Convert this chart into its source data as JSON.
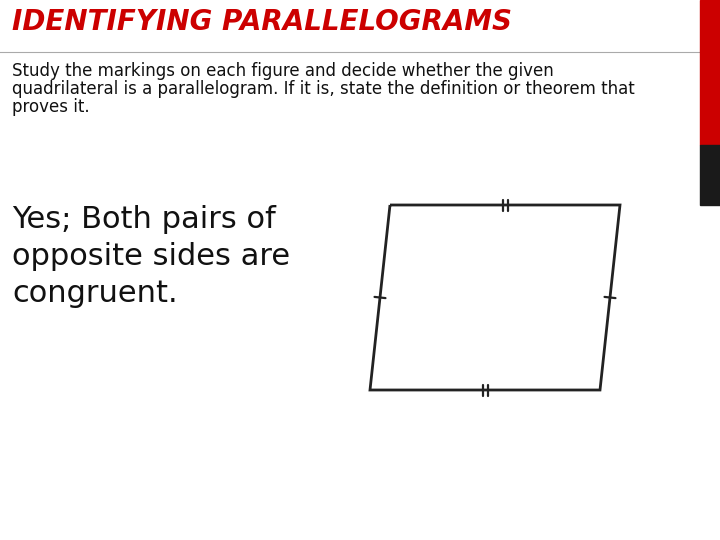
{
  "title": "IDENTIFYING PARALLELOGRAMS",
  "title_color": "#cc0000",
  "body_bg": "#ffffff",
  "red_bar_color": "#cc0000",
  "black_bar_color": "#1a1a1a",
  "subtitle_line1": "Study the markings on each figure and decide whether the given",
  "subtitle_line2": "quadrilateral is a parallelogram. If it is, state the definition or theorem that",
  "subtitle_line3": "proves it.",
  "answer_text": "Yes; Both pairs of\nopposite sides are\ncongruent.",
  "answer_fontsize": 22,
  "subtitle_fontsize": 12,
  "title_fontsize": 20,
  "shape_color": "#222222",
  "shape_linewidth": 2.0,
  "tick_color": "#222222",
  "tick_lw": 1.6
}
